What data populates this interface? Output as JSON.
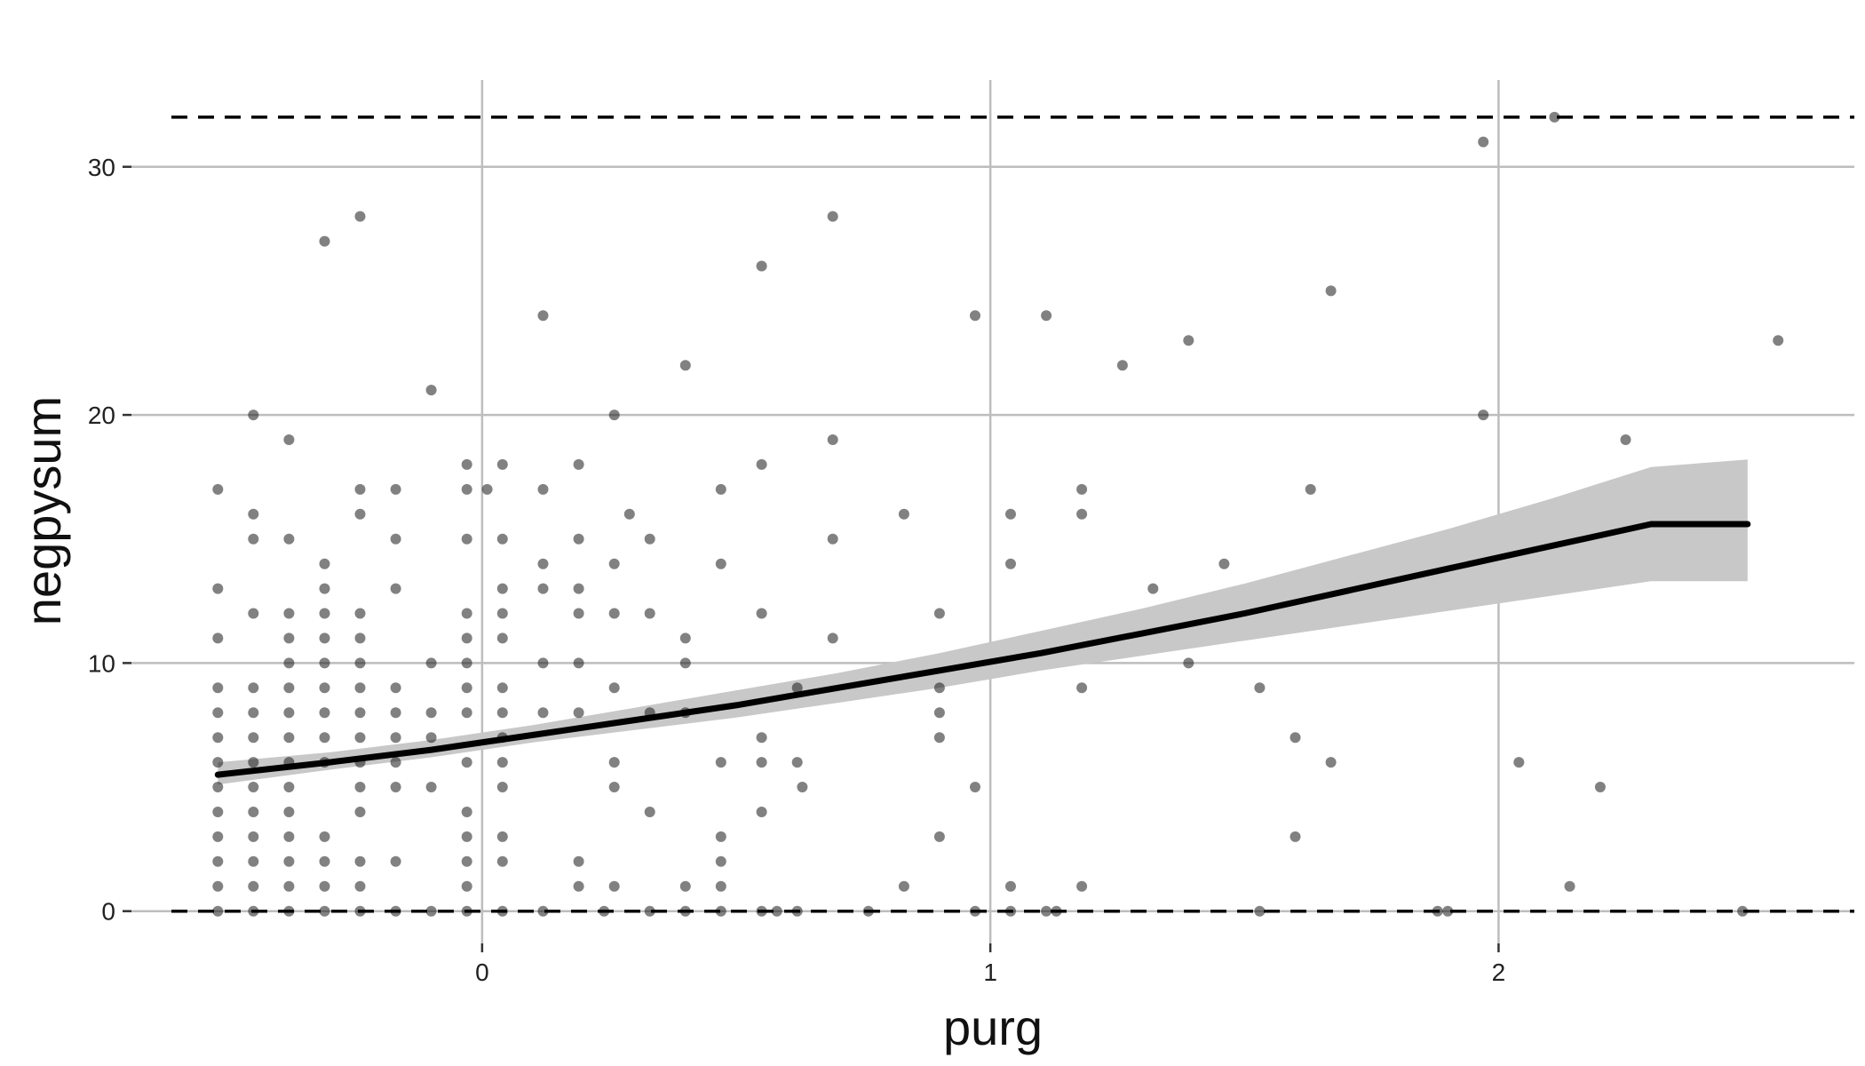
{
  "chart_data": {
    "type": "scatter",
    "title": "",
    "xlabel": "purg",
    "ylabel": "negpysum",
    "xlim": [
      -0.69,
      2.7
    ],
    "ylim": [
      -1.3,
      33.5
    ],
    "x_ticks": [
      0,
      1,
      2
    ],
    "y_ticks": [
      0,
      10,
      20,
      30
    ],
    "grid": true,
    "legend": "none",
    "reference_lines": [
      0,
      32
    ],
    "colors": {
      "points": "#1a1a1a",
      "fit_line": "#000000",
      "ci_band": "#c8c8c8",
      "grid": "#bdbdbd",
      "reference_line": "#000000"
    },
    "fit": {
      "x": [
        -0.52,
        -0.3,
        -0.1,
        0.1,
        0.3,
        0.5,
        0.7,
        0.9,
        1.1,
        1.3,
        1.5,
        1.7,
        1.9,
        2.1,
        2.3,
        2.49
      ],
      "y": [
        5.5,
        6.0,
        6.5,
        7.1,
        7.7,
        8.3,
        9.0,
        9.7,
        10.4,
        11.2,
        12.0,
        12.9,
        13.8,
        14.7,
        15.6,
        15.6
      ],
      "lower": [
        5.1,
        5.7,
        6.2,
        6.8,
        7.3,
        7.8,
        8.4,
        9.0,
        9.7,
        10.3,
        10.9,
        11.5,
        12.1,
        12.7,
        13.3,
        13.3
      ],
      "upper": [
        6.0,
        6.4,
        6.9,
        7.5,
        8.2,
        8.9,
        9.6,
        10.4,
        11.3,
        12.2,
        13.2,
        14.3,
        15.4,
        16.6,
        17.9,
        18.2
      ]
    },
    "points": [
      [
        -0.52,
        0
      ],
      [
        -0.52,
        1
      ],
      [
        -0.52,
        2
      ],
      [
        -0.52,
        3
      ],
      [
        -0.52,
        4
      ],
      [
        -0.52,
        5
      ],
      [
        -0.52,
        6
      ],
      [
        -0.52,
        7
      ],
      [
        -0.52,
        8
      ],
      [
        -0.52,
        9
      ],
      [
        -0.52,
        11
      ],
      [
        -0.52,
        13
      ],
      [
        -0.52,
        17
      ],
      [
        -0.45,
        0
      ],
      [
        -0.45,
        1
      ],
      [
        -0.45,
        2
      ],
      [
        -0.45,
        3
      ],
      [
        -0.45,
        4
      ],
      [
        -0.45,
        5
      ],
      [
        -0.45,
        6
      ],
      [
        -0.45,
        7
      ],
      [
        -0.45,
        8
      ],
      [
        -0.45,
        9
      ],
      [
        -0.45,
        12
      ],
      [
        -0.45,
        15
      ],
      [
        -0.45,
        16
      ],
      [
        -0.45,
        20
      ],
      [
        -0.38,
        0
      ],
      [
        -0.38,
        1
      ],
      [
        -0.38,
        2
      ],
      [
        -0.38,
        3
      ],
      [
        -0.38,
        4
      ],
      [
        -0.38,
        5
      ],
      [
        -0.38,
        6
      ],
      [
        -0.38,
        7
      ],
      [
        -0.38,
        8
      ],
      [
        -0.38,
        9
      ],
      [
        -0.38,
        10
      ],
      [
        -0.38,
        11
      ],
      [
        -0.38,
        12
      ],
      [
        -0.38,
        15
      ],
      [
        -0.38,
        19
      ],
      [
        -0.31,
        0
      ],
      [
        -0.31,
        1
      ],
      [
        -0.31,
        2
      ],
      [
        -0.31,
        3
      ],
      [
        -0.31,
        6
      ],
      [
        -0.31,
        7
      ],
      [
        -0.31,
        8
      ],
      [
        -0.31,
        9
      ],
      [
        -0.31,
        10
      ],
      [
        -0.31,
        11
      ],
      [
        -0.31,
        12
      ],
      [
        -0.31,
        13
      ],
      [
        -0.31,
        14
      ],
      [
        -0.31,
        27
      ],
      [
        -0.24,
        0
      ],
      [
        -0.24,
        1
      ],
      [
        -0.24,
        2
      ],
      [
        -0.24,
        4
      ],
      [
        -0.24,
        5
      ],
      [
        -0.24,
        6
      ],
      [
        -0.24,
        7
      ],
      [
        -0.24,
        8
      ],
      [
        -0.24,
        9
      ],
      [
        -0.24,
        10
      ],
      [
        -0.24,
        11
      ],
      [
        -0.24,
        12
      ],
      [
        -0.24,
        16
      ],
      [
        -0.24,
        17
      ],
      [
        -0.24,
        28
      ],
      [
        -0.17,
        0
      ],
      [
        -0.17,
        2
      ],
      [
        -0.17,
        5
      ],
      [
        -0.17,
        6
      ],
      [
        -0.17,
        7
      ],
      [
        -0.17,
        8
      ],
      [
        -0.17,
        9
      ],
      [
        -0.17,
        13
      ],
      [
        -0.17,
        15
      ],
      [
        -0.17,
        17
      ],
      [
        -0.1,
        0
      ],
      [
        -0.1,
        5
      ],
      [
        -0.1,
        7
      ],
      [
        -0.1,
        8
      ],
      [
        -0.1,
        10
      ],
      [
        -0.1,
        21
      ],
      [
        -0.03,
        0
      ],
      [
        -0.03,
        1
      ],
      [
        -0.03,
        2
      ],
      [
        -0.03,
        3
      ],
      [
        -0.03,
        4
      ],
      [
        -0.03,
        6
      ],
      [
        -0.03,
        8
      ],
      [
        -0.03,
        9
      ],
      [
        -0.03,
        10
      ],
      [
        -0.03,
        11
      ],
      [
        -0.03,
        12
      ],
      [
        -0.03,
        15
      ],
      [
        -0.03,
        17
      ],
      [
        -0.03,
        18
      ],
      [
        0.04,
        0
      ],
      [
        0.04,
        2
      ],
      [
        0.04,
        3
      ],
      [
        0.04,
        5
      ],
      [
        0.04,
        6
      ],
      [
        0.04,
        7
      ],
      [
        0.04,
        8
      ],
      [
        0.04,
        9
      ],
      [
        0.04,
        11
      ],
      [
        0.04,
        12
      ],
      [
        0.04,
        13
      ],
      [
        0.04,
        15
      ],
      [
        0.04,
        18
      ],
      [
        0.01,
        17
      ],
      [
        0.12,
        0
      ],
      [
        0.12,
        8
      ],
      [
        0.12,
        10
      ],
      [
        0.12,
        13
      ],
      [
        0.12,
        14
      ],
      [
        0.12,
        17
      ],
      [
        0.12,
        24
      ],
      [
        0.19,
        1
      ],
      [
        0.19,
        2
      ],
      [
        0.19,
        8
      ],
      [
        0.19,
        10
      ],
      [
        0.19,
        12
      ],
      [
        0.19,
        13
      ],
      [
        0.19,
        15
      ],
      [
        0.19,
        18
      ],
      [
        0.24,
        0
      ],
      [
        0.26,
        1
      ],
      [
        0.26,
        5
      ],
      [
        0.26,
        6
      ],
      [
        0.26,
        9
      ],
      [
        0.26,
        12
      ],
      [
        0.26,
        14
      ],
      [
        0.26,
        20
      ],
      [
        0.29,
        16
      ],
      [
        0.33,
        0
      ],
      [
        0.33,
        4
      ],
      [
        0.33,
        8
      ],
      [
        0.33,
        12
      ],
      [
        0.33,
        15
      ],
      [
        0.4,
        0
      ],
      [
        0.4,
        1
      ],
      [
        0.4,
        8
      ],
      [
        0.4,
        10
      ],
      [
        0.4,
        11
      ],
      [
        0.4,
        22
      ],
      [
        0.47,
        0
      ],
      [
        0.47,
        1
      ],
      [
        0.47,
        2
      ],
      [
        0.47,
        3
      ],
      [
        0.47,
        6
      ],
      [
        0.47,
        14
      ],
      [
        0.47,
        17
      ],
      [
        0.55,
        0
      ],
      [
        0.55,
        4
      ],
      [
        0.55,
        6
      ],
      [
        0.55,
        7
      ],
      [
        0.55,
        12
      ],
      [
        0.55,
        18
      ],
      [
        0.55,
        26
      ],
      [
        0.58,
        0
      ],
      [
        0.62,
        0
      ],
      [
        0.62,
        6
      ],
      [
        0.62,
        9
      ],
      [
        0.63,
        5
      ],
      [
        0.69,
        11
      ],
      [
        0.69,
        15
      ],
      [
        0.69,
        19
      ],
      [
        0.69,
        28
      ],
      [
        0.76,
        0
      ],
      [
        0.83,
        1
      ],
      [
        0.83,
        16
      ],
      [
        0.9,
        3
      ],
      [
        0.9,
        7
      ],
      [
        0.9,
        8
      ],
      [
        0.9,
        9
      ],
      [
        0.9,
        12
      ],
      [
        0.97,
        0
      ],
      [
        0.97,
        5
      ],
      [
        0.97,
        24
      ],
      [
        1.04,
        0
      ],
      [
        1.04,
        1
      ],
      [
        1.04,
        14
      ],
      [
        1.04,
        16
      ],
      [
        1.11,
        0
      ],
      [
        1.11,
        24
      ],
      [
        1.13,
        0
      ],
      [
        1.18,
        1
      ],
      [
        1.18,
        9
      ],
      [
        1.18,
        16
      ],
      [
        1.18,
        17
      ],
      [
        1.26,
        22
      ],
      [
        1.32,
        13
      ],
      [
        1.39,
        10
      ],
      [
        1.39,
        23
      ],
      [
        1.46,
        14
      ],
      [
        1.53,
        0
      ],
      [
        1.53,
        9
      ],
      [
        1.6,
        3
      ],
      [
        1.6,
        7
      ],
      [
        1.63,
        17
      ],
      [
        1.67,
        6
      ],
      [
        1.67,
        25
      ],
      [
        1.88,
        0
      ],
      [
        1.9,
        0
      ],
      [
        1.97,
        20
      ],
      [
        1.97,
        31
      ],
      [
        2.04,
        6
      ],
      [
        2.11,
        32
      ],
      [
        2.14,
        1
      ],
      [
        2.2,
        5
      ],
      [
        2.25,
        19
      ],
      [
        2.48,
        0
      ],
      [
        2.55,
        23
      ]
    ]
  }
}
